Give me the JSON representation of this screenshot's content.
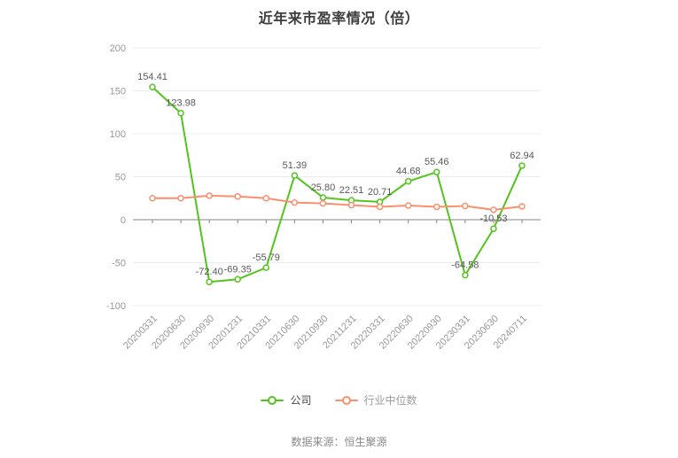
{
  "chart_data": {
    "type": "line",
    "title": "近年来市盈率情况（倍）",
    "categories": [
      "20200331",
      "20200630",
      "20200930",
      "20201231",
      "20210331",
      "20210630",
      "20210930",
      "20211231",
      "20220331",
      "20220630",
      "20220930",
      "20230331",
      "20230630",
      "20240711"
    ],
    "series": [
      {
        "name": "公司",
        "color": "#53c41d",
        "show_labels": true,
        "values": [
          154.41,
          123.98,
          -72.4,
          -69.35,
          -55.79,
          51.39,
          25.8,
          22.51,
          20.71,
          44.68,
          55.46,
          -64.58,
          -10.53,
          62.94
        ]
      },
      {
        "name": "行业中位数",
        "color": "#f9906e",
        "show_labels": false,
        "values": [
          25,
          25,
          28,
          27,
          25,
          20,
          19,
          17,
          15,
          16.5,
          15,
          16,
          11.5,
          15.5
        ]
      }
    ],
    "yticks": [
      200,
      150,
      100,
      50,
      0,
      -50,
      -100
    ],
    "ylim": [
      -100,
      200
    ],
    "grid": true,
    "legend_position": "bottom",
    "axis_color": "#848484",
    "grid_color": "#e8edf3",
    "tick_label_color": "#999999",
    "data_label_color": "#595959"
  },
  "footer": {
    "source": "数据来源：恒生聚源"
  }
}
